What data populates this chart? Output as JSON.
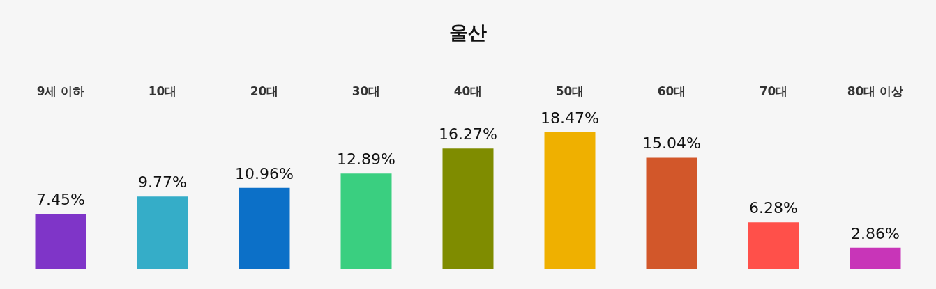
{
  "chart_data": {
    "type": "bar",
    "title": "울산",
    "categories": [
      "9세 이하",
      "10대",
      "20대",
      "30대",
      "40대",
      "50대",
      "60대",
      "70대",
      "80대 이상"
    ],
    "values": [
      7.45,
      9.77,
      10.96,
      12.89,
      16.27,
      18.47,
      15.04,
      6.28,
      2.86
    ],
    "value_labels": [
      "7.45%",
      "9.77%",
      "10.96%",
      "12.89%",
      "16.27%",
      "18.47%",
      "15.04%",
      "6.28%",
      "2.86%"
    ],
    "colors": [
      "#7f35c8",
      "#35adc8",
      "#0c70c8",
      "#3acf80",
      "#7f8c00",
      "#efb000",
      "#d2572a",
      "#ff504a",
      "#c835b8"
    ]
  }
}
